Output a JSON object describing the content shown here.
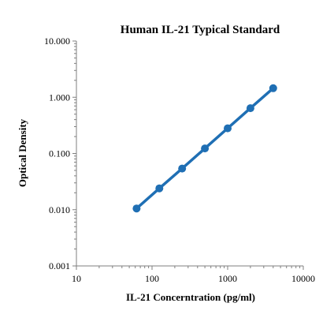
{
  "chart_data": {
    "type": "line",
    "title": "Human IL-21 Typical Standard",
    "xlabel": "IL-21 Concerntration (pg/ml)",
    "ylabel": "Optical Density",
    "x_scale": "log",
    "y_scale": "log",
    "xlim": [
      10,
      10000
    ],
    "ylim": [
      0.001,
      10
    ],
    "x_ticks": [
      "10",
      "100",
      "1000",
      "10000"
    ],
    "y_ticks": [
      "0.001",
      "0.010",
      "0.100",
      "1.000",
      "10.000"
    ],
    "grid": false,
    "legend": "none",
    "series": [
      {
        "color": "#1f6fb4",
        "x": [
          62.5,
          125,
          250,
          500,
          1000,
          2000,
          4000
        ],
        "y": [
          0.0105,
          0.024,
          0.054,
          0.123,
          0.28,
          0.64,
          1.45
        ]
      }
    ]
  }
}
